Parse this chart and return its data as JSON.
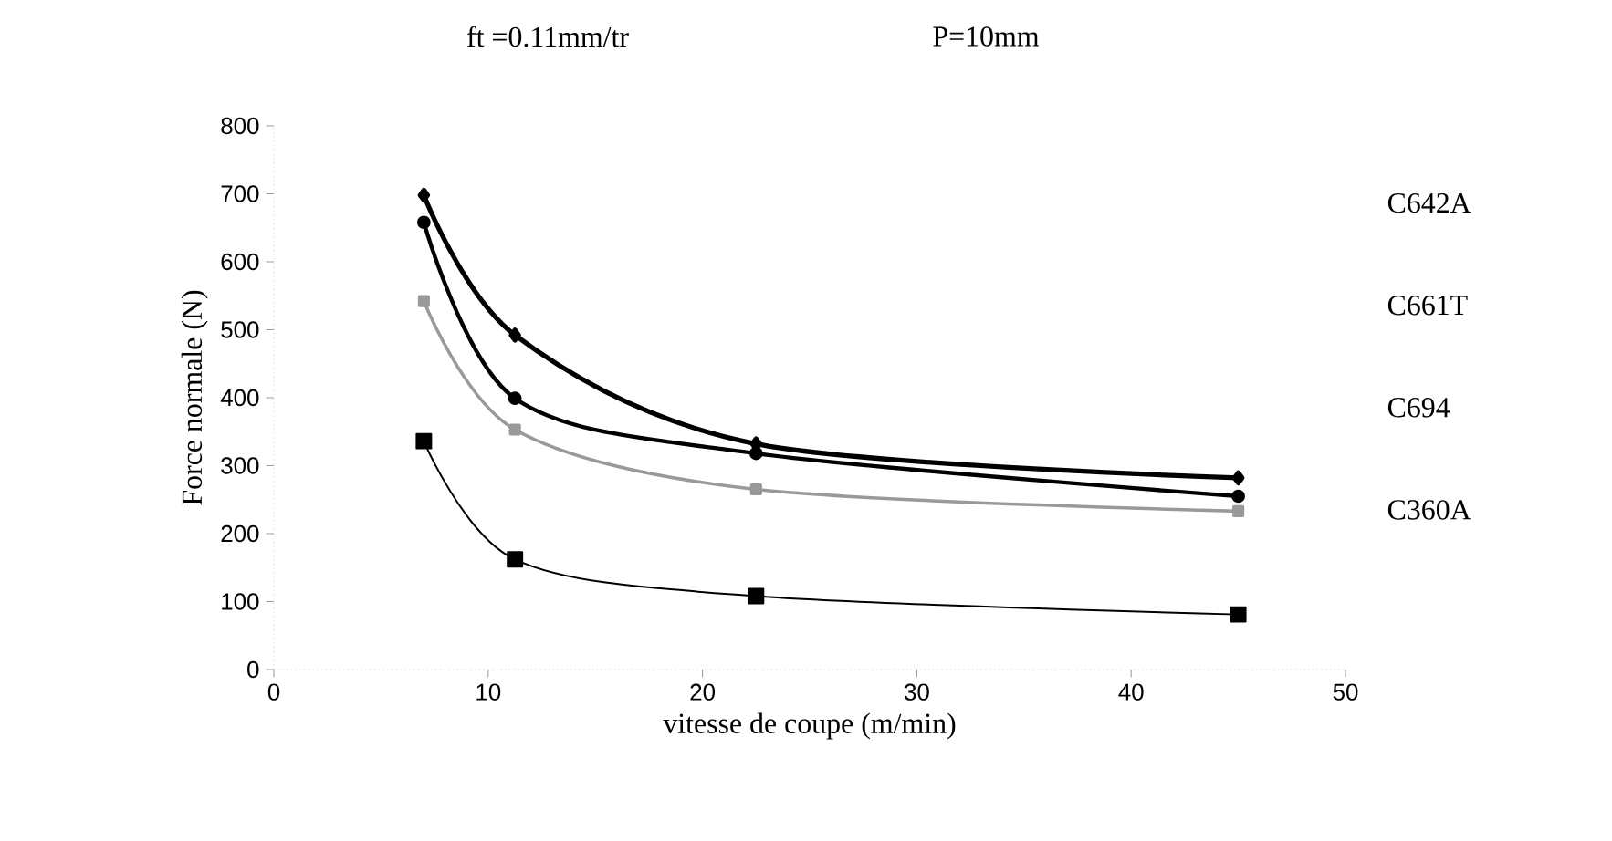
{
  "chart_data": {
    "type": "line",
    "xlabel": "vitesse de coupe (m/min)",
    "ylabel": "Force normale (N)",
    "annotations": [
      "ft =0.11mm/tr",
      "P=10mm"
    ],
    "x": [
      7,
      11.25,
      22.5,
      45
    ],
    "series": [
      {
        "name": "C642A",
        "color": "#000000",
        "values": [
          698,
          492,
          332,
          282
        ],
        "marker": "diamond"
      },
      {
        "name": "C661T",
        "color": "#000000",
        "values": [
          658,
          399,
          318,
          255
        ],
        "marker": "circle"
      },
      {
        "name": "C694",
        "color": "#999999",
        "values": [
          542,
          353,
          265,
          233
        ],
        "marker": "square"
      },
      {
        "name": "C360A",
        "color": "#000000",
        "values": [
          336,
          162,
          108,
          81
        ],
        "marker": "square"
      }
    ],
    "xlim": [
      0,
      50
    ],
    "xticks": [
      0,
      10,
      20,
      30,
      40,
      50
    ],
    "ylim": [
      0,
      800
    ],
    "yticks": [
      0,
      100,
      200,
      300,
      400,
      500,
      600,
      700,
      800
    ],
    "legend": "right",
    "grid": false,
    "line_style": "solid"
  }
}
